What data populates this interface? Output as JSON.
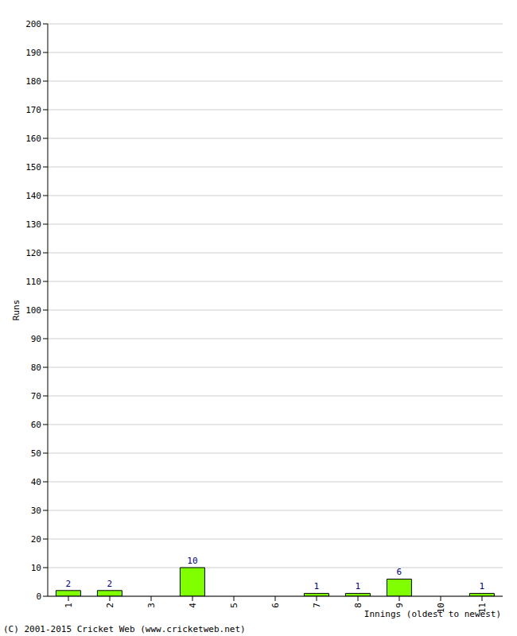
{
  "chart_data": {
    "type": "bar",
    "categories": [
      "1",
      "2",
      "3",
      "4",
      "5",
      "6",
      "7",
      "8",
      "9",
      "10",
      "11"
    ],
    "values": [
      2,
      2,
      0,
      10,
      0,
      0,
      1,
      1,
      6,
      0,
      1
    ],
    "color": "#80ff00",
    "x_label": "Innings (oldest to newest)",
    "y_label": "Runs",
    "ylim": [
      0,
      200
    ],
    "yticks": [
      0,
      10,
      20,
      30,
      40,
      50,
      60,
      70,
      80,
      90,
      100,
      110,
      120,
      130,
      140,
      150,
      160,
      170,
      180,
      190,
      200
    ],
    "grid": true,
    "data_labels": true,
    "annotations": [
      "(C) 2001-2015 Cricket Web (www.cricketweb.net)"
    ]
  }
}
